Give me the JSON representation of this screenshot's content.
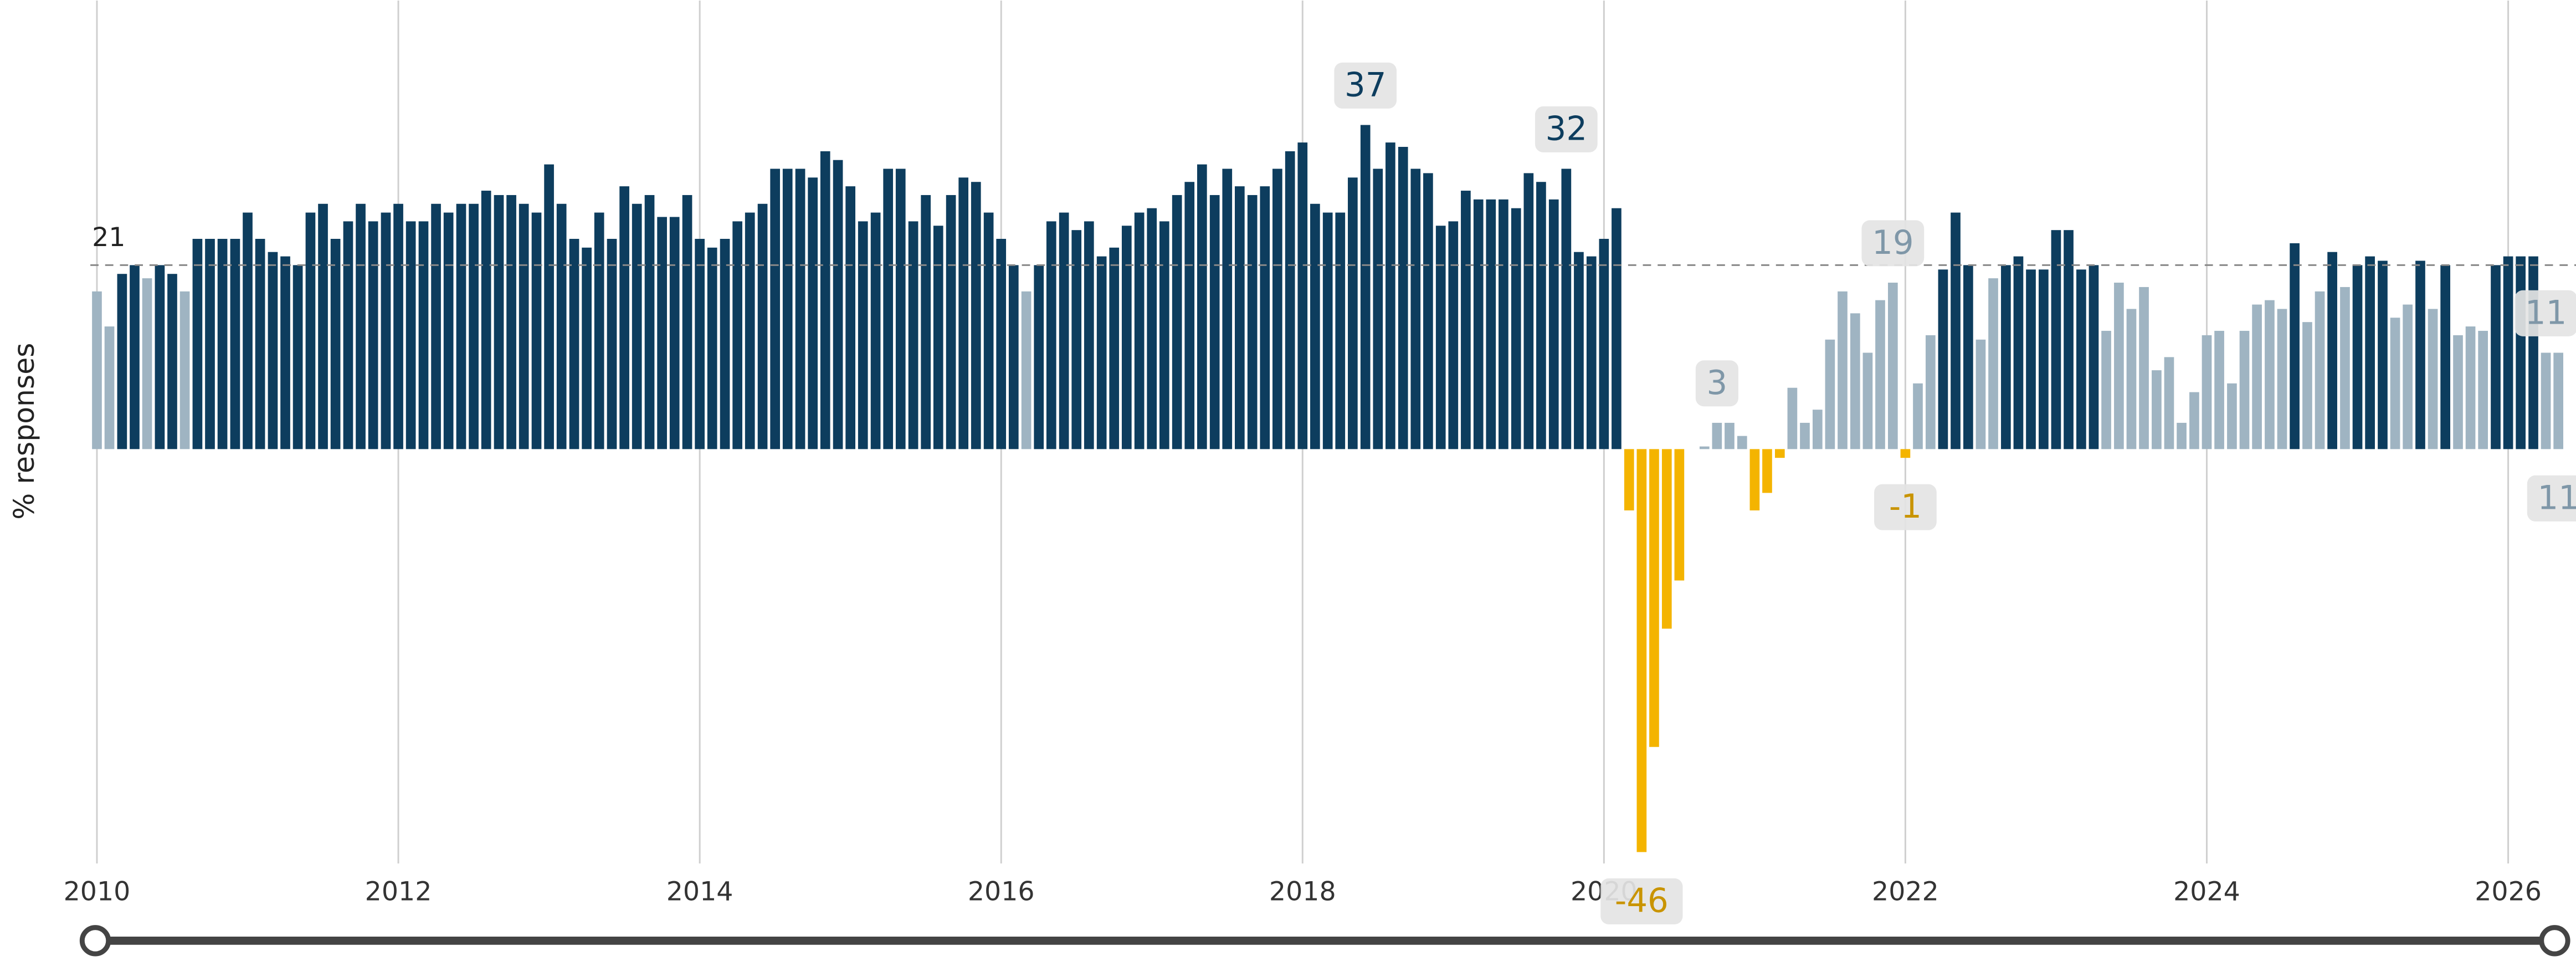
{
  "chart_data": {
    "type": "bar",
    "y_label": "% responses",
    "xlim": [
      2010,
      2026.45
    ],
    "ylim": [
      -47.3,
      51.2
    ],
    "xticks": [
      2010,
      2012,
      2014,
      2016,
      2018,
      2020,
      2022,
      2024,
      2026
    ],
    "grid": true,
    "reference_line": {
      "value": 21
    },
    "x": [
      2010,
      2010.083,
      2010.167,
      2010.25,
      2010.333,
      2010.417,
      2010.5,
      2010.583,
      2010.667,
      2010.75,
      2010.833,
      2010.917,
      2011,
      2011.083,
      2011.167,
      2011.25,
      2011.333,
      2011.417,
      2011.5,
      2011.583,
      2011.667,
      2011.75,
      2011.833,
      2011.917,
      2012,
      2012.083,
      2012.167,
      2012.25,
      2012.333,
      2012.417,
      2012.5,
      2012.583,
      2012.667,
      2012.75,
      2012.833,
      2012.917,
      2013,
      2013.083,
      2013.167,
      2013.25,
      2013.333,
      2013.417,
      2013.5,
      2013.583,
      2013.667,
      2013.75,
      2013.833,
      2013.917,
      2014,
      2014.083,
      2014.167,
      2014.25,
      2014.333,
      2014.417,
      2014.5,
      2014.583,
      2014.667,
      2014.75,
      2014.833,
      2014.917,
      2015,
      2015.083,
      2015.167,
      2015.25,
      2015.333,
      2015.417,
      2015.5,
      2015.583,
      2015.667,
      2015.75,
      2015.833,
      2015.917,
      2016,
      2016.083,
      2016.167,
      2016.25,
      2016.333,
      2016.417,
      2016.5,
      2016.583,
      2016.667,
      2016.75,
      2016.833,
      2016.917,
      2017,
      2017.083,
      2017.167,
      2017.25,
      2017.333,
      2017.417,
      2017.5,
      2017.583,
      2017.667,
      2017.75,
      2017.833,
      2017.917,
      2018,
      2018.083,
      2018.167,
      2018.25,
      2018.333,
      2018.417,
      2018.5,
      2018.583,
      2018.667,
      2018.75,
      2018.833,
      2018.917,
      2019,
      2019.083,
      2019.167,
      2019.25,
      2019.333,
      2019.417,
      2019.5,
      2019.583,
      2019.667,
      2019.75,
      2019.833,
      2019.917,
      2020,
      2020.083,
      2020.167,
      2020.25,
      2020.333,
      2020.417,
      2020.5,
      2020.583,
      2020.667,
      2020.75,
      2020.833,
      2020.917,
      2021,
      2021.083,
      2021.167,
      2021.25,
      2021.333,
      2021.417,
      2021.5,
      2021.583,
      2021.667,
      2021.75,
      2021.833,
      2021.917,
      2022,
      2022.083,
      2022.167,
      2022.25,
      2022.333,
      2022.417,
      2022.5,
      2022.583,
      2022.667,
      2022.75,
      2022.833,
      2022.917,
      2023,
      2023.083,
      2023.167,
      2023.25,
      2023.333,
      2023.417,
      2023.5,
      2023.583,
      2023.667,
      2023.75,
      2023.833,
      2023.917,
      2024,
      2024.083,
      2024.167,
      2024.25,
      2024.333,
      2024.417,
      2024.5,
      2024.583,
      2024.667,
      2024.75,
      2024.833,
      2024.917,
      2025,
      2025.083,
      2025.167,
      2025.25,
      2025.333,
      2025.417,
      2025.5,
      2025.583,
      2025.667,
      2025.75,
      2025.833,
      2025.917,
      2026,
      2026.083,
      2026.167,
      2026.25,
      2026.333
    ],
    "values": [
      18,
      14,
      20,
      21,
      19.5,
      21,
      20,
      18,
      24,
      24,
      24,
      24,
      27,
      24,
      22.5,
      22,
      21,
      27,
      28,
      24,
      26,
      28,
      26,
      27,
      28,
      26,
      26,
      28,
      27,
      28,
      28,
      29.5,
      29,
      29,
      28,
      27,
      32.5,
      28,
      24,
      23,
      27,
      24,
      30,
      28,
      29,
      26.5,
      26.5,
      29,
      24,
      23,
      24,
      26,
      27,
      28,
      32,
      32,
      32,
      31,
      34,
      33,
      30,
      26,
      27,
      32,
      32,
      26,
      29,
      25.5,
      29,
      31,
      30.5,
      27,
      24,
      21,
      18,
      21,
      26,
      27,
      25,
      26,
      22,
      23,
      25.5,
      27,
      27.5,
      26,
      29,
      30.5,
      32.5,
      29,
      32,
      30,
      29,
      30,
      32,
      34,
      35,
      28,
      27,
      27,
      31,
      37,
      32,
      35,
      34.5,
      32,
      31.5,
      25.5,
      26,
      29.5,
      28.5,
      28.5,
      28.5,
      27.5,
      31.5,
      30.5,
      28.5,
      32,
      22.5,
      22,
      24,
      27.5,
      -7,
      -46,
      -34,
      -20.5,
      -15,
      0,
      0.3,
      3,
      3,
      1.5,
      -7,
      -5,
      -1,
      7,
      3,
      4.5,
      12.5,
      18,
      15.5,
      11,
      17,
      19,
      -1,
      7.5,
      13,
      20.5,
      27,
      21,
      12.5,
      19.5,
      21,
      22,
      20.5,
      20.5,
      25,
      25,
      20.5,
      21,
      13.5,
      19,
      16,
      18.5,
      9,
      10.5,
      3,
      6.5,
      13,
      13.5,
      7.5,
      13.5,
      16.5,
      17,
      16,
      23.5,
      14.5,
      18,
      22.5,
      18.5,
      21,
      22,
      21.5,
      15,
      16.5,
      21.5,
      16,
      21,
      13,
      14,
      13.5,
      21,
      22,
      22,
      22,
      11,
      11
    ],
    "colors": [
      "#9fb4c2",
      "#9fb4c2",
      "#0d3d5e",
      "#0d3d5e",
      "#9fb4c2",
      "#0d3d5e",
      "#0d3d5e",
      "#9fb4c2",
      "#0d3d5e",
      "#0d3d5e",
      "#0d3d5e",
      "#0d3d5e",
      "#0d3d5e",
      "#0d3d5e",
      "#0d3d5e",
      "#0d3d5e",
      "#0d3d5e",
      "#0d3d5e",
      "#0d3d5e",
      "#0d3d5e",
      "#0d3d5e",
      "#0d3d5e",
      "#0d3d5e",
      "#0d3d5e",
      "#0d3d5e",
      "#0d3d5e",
      "#0d3d5e",
      "#0d3d5e",
      "#0d3d5e",
      "#0d3d5e",
      "#0d3d5e",
      "#0d3d5e",
      "#0d3d5e",
      "#0d3d5e",
      "#0d3d5e",
      "#0d3d5e",
      "#0d3d5e",
      "#0d3d5e",
      "#0d3d5e",
      "#0d3d5e",
      "#0d3d5e",
      "#0d3d5e",
      "#0d3d5e",
      "#0d3d5e",
      "#0d3d5e",
      "#0d3d5e",
      "#0d3d5e",
      "#0d3d5e",
      "#0d3d5e",
      "#0d3d5e",
      "#0d3d5e",
      "#0d3d5e",
      "#0d3d5e",
      "#0d3d5e",
      "#0d3d5e",
      "#0d3d5e",
      "#0d3d5e",
      "#0d3d5e",
      "#0d3d5e",
      "#0d3d5e",
      "#0d3d5e",
      "#0d3d5e",
      "#0d3d5e",
      "#0d3d5e",
      "#0d3d5e",
      "#0d3d5e",
      "#0d3d5e",
      "#0d3d5e",
      "#0d3d5e",
      "#0d3d5e",
      "#0d3d5e",
      "#0d3d5e",
      "#0d3d5e",
      "#0d3d5e",
      "#9fb4c2",
      "#0d3d5e",
      "#0d3d5e",
      "#0d3d5e",
      "#0d3d5e",
      "#0d3d5e",
      "#0d3d5e",
      "#0d3d5e",
      "#0d3d5e",
      "#0d3d5e",
      "#0d3d5e",
      "#0d3d5e",
      "#0d3d5e",
      "#0d3d5e",
      "#0d3d5e",
      "#0d3d5e",
      "#0d3d5e",
      "#0d3d5e",
      "#0d3d5e",
      "#0d3d5e",
      "#0d3d5e",
      "#0d3d5e",
      "#0d3d5e",
      "#0d3d5e",
      "#0d3d5e",
      "#0d3d5e",
      "#0d3d5e",
      "#0d3d5e",
      "#0d3d5e",
      "#0d3d5e",
      "#0d3d5e",
      "#0d3d5e",
      "#0d3d5e",
      "#0d3d5e",
      "#0d3d5e",
      "#0d3d5e",
      "#0d3d5e",
      "#0d3d5e",
      "#0d3d5e",
      "#0d3d5e",
      "#0d3d5e",
      "#0d3d5e",
      "#0d3d5e",
      "#0d3d5e",
      "#0d3d5e",
      "#0d3d5e",
      "#0d3d5e",
      "#0d3d5e",
      "#f4b400",
      "#f4b400",
      "#f4b400",
      "#f4b400",
      "#f4b400",
      "#9fb4c2",
      "#9fb4c2",
      "#9fb4c2",
      "#9fb4c2",
      "#9fb4c2",
      "#f4b400",
      "#f4b400",
      "#f4b400",
      "#9fb4c2",
      "#9fb4c2",
      "#9fb4c2",
      "#9fb4c2",
      "#9fb4c2",
      "#9fb4c2",
      "#9fb4c2",
      "#9fb4c2",
      "#9fb4c2",
      "#f4b400",
      "#9fb4c2",
      "#9fb4c2",
      "#0d3d5e",
      "#0d3d5e",
      "#0d3d5e",
      "#9fb4c2",
      "#9fb4c2",
      "#0d3d5e",
      "#0d3d5e",
      "#0d3d5e",
      "#0d3d5e",
      "#0d3d5e",
      "#0d3d5e",
      "#0d3d5e",
      "#0d3d5e",
      "#9fb4c2",
      "#9fb4c2",
      "#9fb4c2",
      "#9fb4c2",
      "#9fb4c2",
      "#9fb4c2",
      "#9fb4c2",
      "#9fb4c2",
      "#9fb4c2",
      "#9fb4c2",
      "#9fb4c2",
      "#9fb4c2",
      "#9fb4c2",
      "#9fb4c2",
      "#9fb4c2",
      "#0d3d5e",
      "#9fb4c2",
      "#9fb4c2",
      "#0d3d5e",
      "#9fb4c2",
      "#0d3d5e",
      "#0d3d5e",
      "#0d3d5e",
      "#9fb4c2",
      "#9fb4c2",
      "#0d3d5e",
      "#9fb4c2",
      "#0d3d5e",
      "#9fb4c2",
      "#9fb4c2",
      "#9fb4c2",
      "#0d3d5e",
      "#0d3d5e",
      "#0d3d5e",
      "#0d3d5e",
      "#9fb4c2",
      "#9fb4c2"
    ],
    "annotations": [
      {
        "x": 2018.417,
        "text": "37"
      },
      {
        "x": 2019.75,
        "text": "32"
      },
      {
        "x": 2020.25,
        "text": "-46"
      },
      {
        "x": 2020.75,
        "text": "3"
      },
      {
        "x": 2021.917,
        "text": "19"
      },
      {
        "x": 2022,
        "text": "-1"
      },
      {
        "x": 2026.25,
        "text": "11"
      },
      {
        "x": 2026.333,
        "text": "11",
        "position": "below"
      }
    ]
  }
}
